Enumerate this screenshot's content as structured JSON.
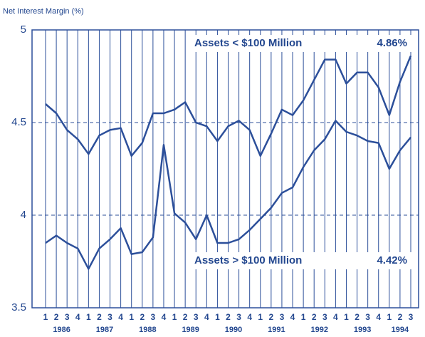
{
  "chart_data": {
    "type": "line",
    "y_axis_label": "Net Interest Margin (%)",
    "categories": [
      "1",
      "2",
      "3",
      "4",
      "1",
      "2",
      "3",
      "4",
      "1",
      "2",
      "3",
      "4",
      "1",
      "2",
      "3",
      "4",
      "1",
      "2",
      "3",
      "4",
      "1",
      "2",
      "3",
      "4",
      "1",
      "2",
      "3",
      "4",
      "1",
      "2",
      "3",
      "4",
      "1",
      "2",
      "3"
    ],
    "year_labels": [
      "1986",
      "1987",
      "1988",
      "1989",
      "1990",
      "1991",
      "1992",
      "1993",
      "1994"
    ],
    "ylim": [
      3.5,
      5
    ],
    "yticks": [
      3.5,
      4,
      4.5,
      5
    ],
    "grid": true,
    "series": [
      {
        "name": "Assets < $100 Million",
        "color": "#2c4f9a",
        "values": [
          4.6,
          4.55,
          4.46,
          4.41,
          4.33,
          4.43,
          4.46,
          4.47,
          4.32,
          4.39,
          4.55,
          4.55,
          4.57,
          4.61,
          4.5,
          4.48,
          4.4,
          4.48,
          4.51,
          4.46,
          4.32,
          4.44,
          4.57,
          4.54,
          4.62,
          4.73,
          4.84,
          4.84,
          4.71,
          4.77,
          4.77,
          4.69,
          4.54,
          4.72,
          4.86
        ],
        "value_labels": [
          null,
          null,
          null,
          null,
          null,
          null,
          null,
          null,
          null,
          null,
          null,
          null,
          null,
          null,
          null,
          null,
          null,
          null,
          null,
          null,
          null,
          null,
          null,
          null,
          null,
          null,
          null,
          null,
          null,
          null,
          null,
          null,
          null,
          null,
          "4.86%"
        ]
      },
      {
        "name": "Assets > $100 Million",
        "color": "#2c4f9a",
        "values": [
          3.85,
          3.89,
          3.85,
          3.82,
          3.71,
          3.82,
          3.87,
          3.93,
          3.79,
          3.8,
          3.88,
          4.38,
          4.01,
          3.96,
          3.87,
          4.0,
          3.85,
          3.85,
          3.87,
          3.92,
          3.98,
          4.04,
          4.12,
          4.15,
          4.26,
          4.35,
          4.41,
          4.51,
          4.45,
          4.43,
          4.4,
          4.39,
          4.25,
          4.35,
          4.42
        ],
        "value_labels": [
          null,
          null,
          null,
          null,
          null,
          null,
          null,
          null,
          null,
          null,
          null,
          null,
          null,
          null,
          null,
          null,
          null,
          null,
          null,
          null,
          null,
          null,
          null,
          null,
          null,
          null,
          null,
          null,
          null,
          null,
          null,
          null,
          null,
          null,
          "4.42%"
        ]
      }
    ]
  }
}
